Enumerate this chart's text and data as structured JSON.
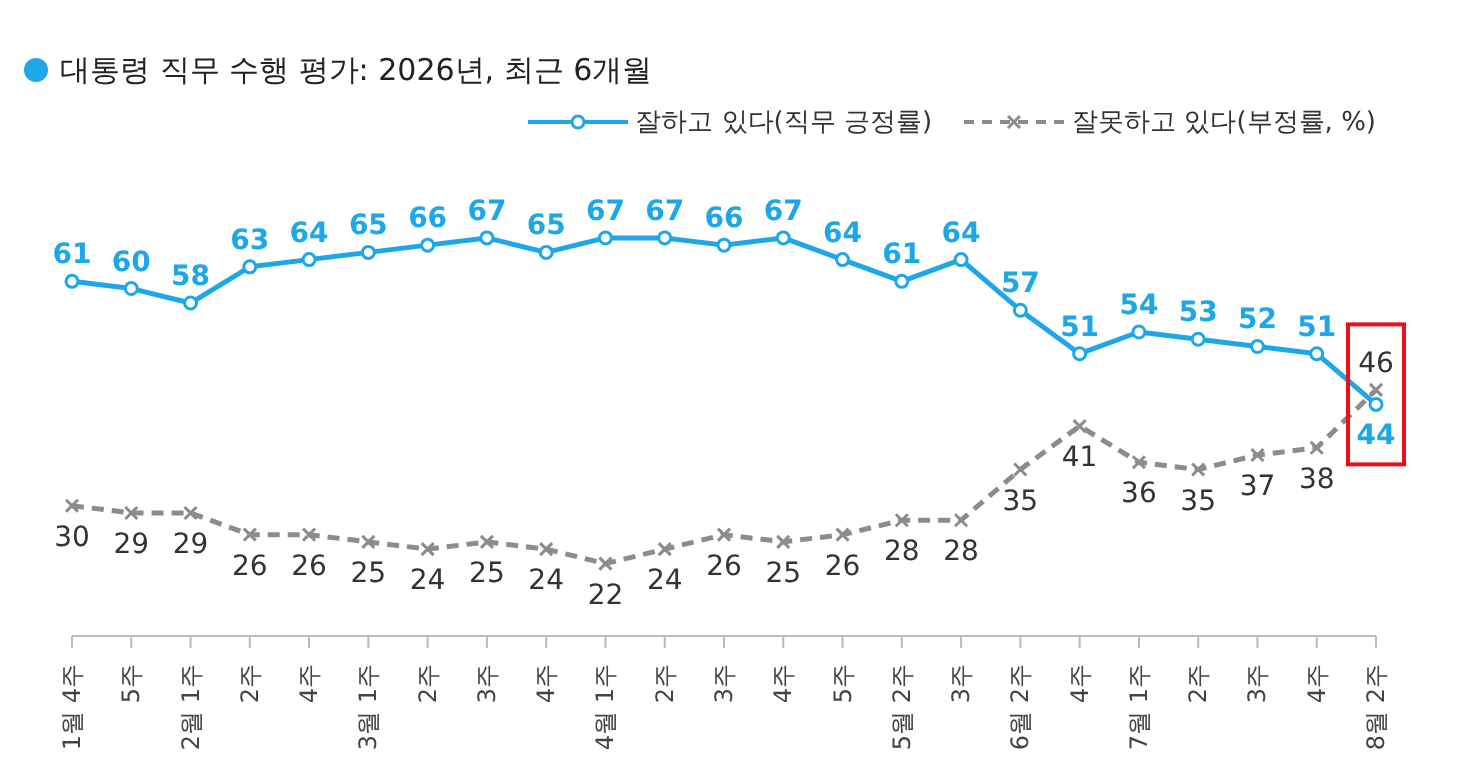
{
  "chart_data": {
    "type": "line",
    "title": "대통령 직무 수행 평가: 2026년, 최근 6개월",
    "tick_labels": "x",
    "categories": [
      "1월 4주",
      "5주",
      "2월 1주",
      "2주",
      "4주",
      "3월 1주",
      "2주",
      "3주",
      "4주",
      "4월 1주",
      "2주",
      "3주",
      "4주",
      "5주",
      "5월 2주",
      "3주",
      "6월 2주",
      "4주",
      "7월 1주",
      "2주",
      "3주",
      "4주",
      "8월 2주"
    ],
    "series": [
      {
        "name": "잘하고 있다(직무 긍정률)",
        "color": "#1ea7e8",
        "marker": "circle",
        "line_style": "solid",
        "values": [
          61,
          60,
          58,
          63,
          64,
          65,
          66,
          67,
          65,
          67,
          67,
          66,
          67,
          64,
          61,
          64,
          57,
          51,
          54,
          53,
          52,
          51,
          44
        ]
      },
      {
        "name": "잘못하고 있다(부정률, %)",
        "color": "#8c8c8c",
        "marker": "cross",
        "line_style": "dashed",
        "values": [
          30,
          29,
          29,
          26,
          26,
          25,
          24,
          25,
          24,
          22,
          24,
          26,
          25,
          26,
          28,
          28,
          35,
          41,
          36,
          35,
          37,
          38,
          46
        ]
      }
    ],
    "data_labels": true,
    "legend": "top right"
  }
}
